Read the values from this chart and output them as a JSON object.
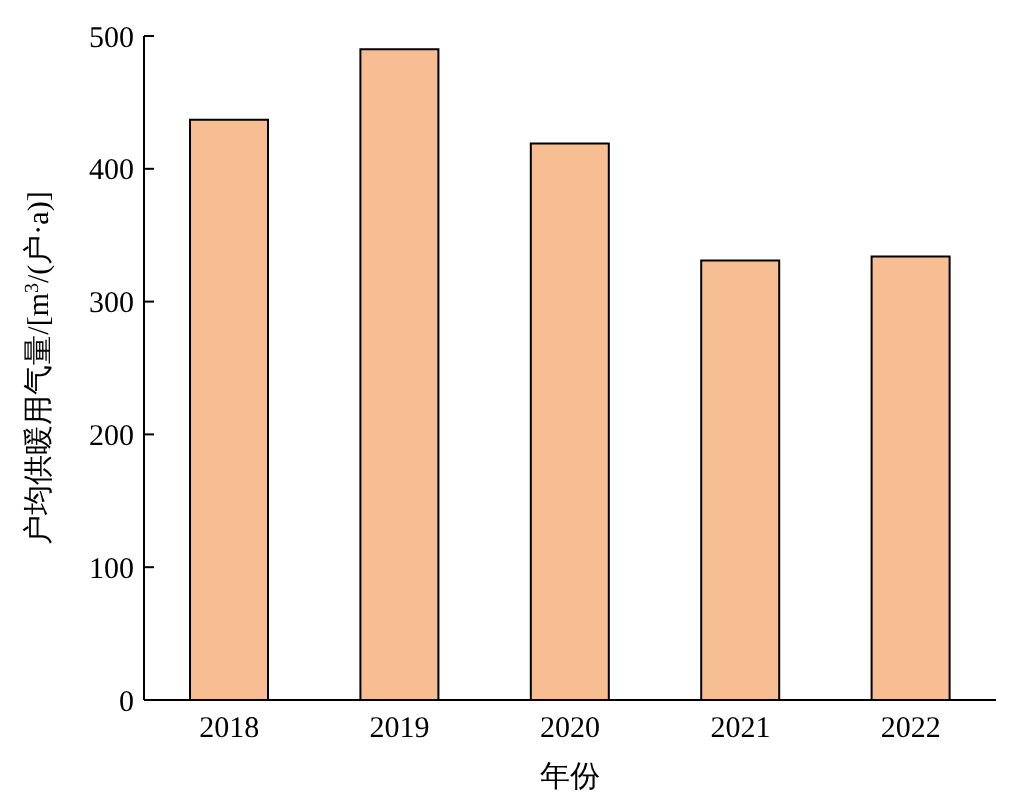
{
  "chart_data": {
    "type": "bar",
    "xlabel": "年份",
    "ylabel": "户均供暖用气量/[m$^{3}$/(户·a)]",
    "categories": [
      "2018",
      "2019",
      "2020",
      "2021",
      "2022"
    ],
    "values": [
      437,
      490,
      419,
      331,
      334
    ],
    "color": "#f8be93",
    "ylim": [
      0,
      500
    ],
    "yticks": [
      0,
      100,
      200,
      300,
      400,
      500
    ],
    "grid": false,
    "legend": false
  }
}
